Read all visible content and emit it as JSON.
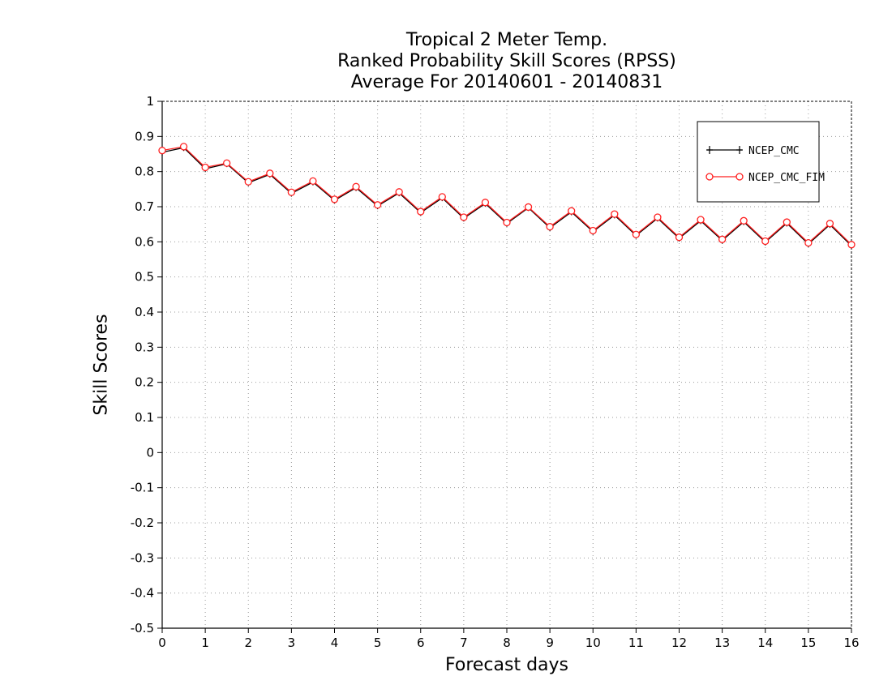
{
  "chart_data": {
    "type": "line",
    "title": [
      "Tropical 2 Meter Temp.",
      "Ranked Probability Skill Scores (RPSS)",
      "Average For 20140601 - 20140831"
    ],
    "xlabel": "Forecast days",
    "ylabel": "Skill Scores",
    "xlim": [
      0,
      16
    ],
    "ylim": [
      -0.5,
      1
    ],
    "xticks": [
      "0",
      "1",
      "2",
      "3",
      "4",
      "5",
      "6",
      "7",
      "8",
      "9",
      "10",
      "11",
      "12",
      "13",
      "14",
      "15",
      "16"
    ],
    "yticks": [
      "1",
      "0.9",
      "0.8",
      "0.7",
      "0.6",
      "0.5",
      "0.4",
      "0.3",
      "0.2",
      "0.1",
      "0",
      "-0.1",
      "-0.2",
      "-0.3",
      "-0.4",
      "-0.5"
    ],
    "grid": true,
    "legend_position": "top-right",
    "x": [
      0,
      0.5,
      1,
      1.5,
      2,
      2.5,
      3,
      3.5,
      4,
      4.5,
      5,
      5.5,
      6,
      6.5,
      7,
      7.5,
      8,
      8.5,
      9,
      9.5,
      10,
      10.5,
      11,
      11.5,
      12,
      12.5,
      13,
      13.5,
      14,
      14.5,
      15,
      15.5,
      16
    ],
    "series": [
      {
        "name": "NCEP_CMC",
        "color": "#000000",
        "marker": "plus",
        "values": [
          0.855,
          0.868,
          0.808,
          0.822,
          0.768,
          0.792,
          0.738,
          0.77,
          0.718,
          0.754,
          0.702,
          0.739,
          0.683,
          0.725,
          0.667,
          0.709,
          0.652,
          0.697,
          0.64,
          0.685,
          0.629,
          0.676,
          0.618,
          0.667,
          0.61,
          0.66,
          0.604,
          0.657,
          0.599,
          0.653,
          0.594,
          0.649,
          0.589
        ]
      },
      {
        "name": "NCEP_CMC_FIM",
        "color": "#ff2020",
        "marker": "circle",
        "values": [
          0.86,
          0.871,
          0.812,
          0.824,
          0.771,
          0.795,
          0.741,
          0.773,
          0.721,
          0.757,
          0.705,
          0.742,
          0.686,
          0.728,
          0.67,
          0.712,
          0.655,
          0.699,
          0.643,
          0.688,
          0.632,
          0.679,
          0.621,
          0.67,
          0.613,
          0.663,
          0.607,
          0.66,
          0.602,
          0.656,
          0.597,
          0.652,
          0.592
        ]
      }
    ]
  }
}
